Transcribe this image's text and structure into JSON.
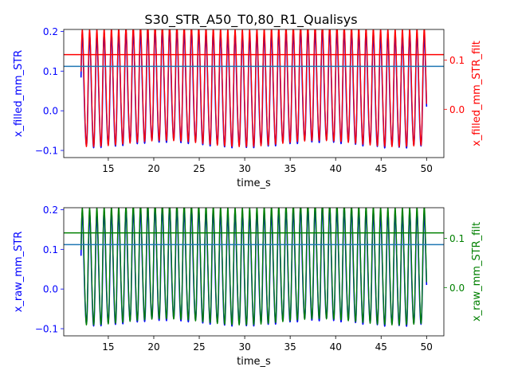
{
  "figure": {
    "title": "S30_STR_A50_T0,80_R1_Qualisys"
  },
  "colors": {
    "blue": "#0000ff",
    "red": "#ff0000",
    "green": "#008000",
    "teal_hline": "#1f77b4"
  },
  "chart_data": [
    {
      "type": "line",
      "title": "S30_STR_A50_T0,80_R1_Qualisys",
      "xlabel": "time_s",
      "ylabel_left": "x_filled_mm_STR",
      "ylabel_right": "x_filled_mm_STR_filt",
      "xlim": [
        10.1,
        51.9
      ],
      "ylim_left": [
        -0.118,
        0.205
      ],
      "ylim_right": [
        -0.098,
        0.162
      ],
      "x_ticks": [
        "15",
        "20",
        "25",
        "30",
        "35",
        "40",
        "45",
        "50"
      ],
      "y_ticks_left": [
        "−0.1",
        "0.0",
        "0.1",
        "0.2"
      ],
      "y_ticks_right": [
        "0.0",
        "0.1"
      ],
      "grid": false,
      "series": [
        {
          "name": "x_filled_mm_STR",
          "axis": "left",
          "color": "#0000ff",
          "signal": {
            "t_start": 12.0,
            "t_end": 50.0,
            "period_s": 0.8,
            "mean": 0.05,
            "amplitude_peak": 0.185,
            "amplitude_trough": -0.09
          }
        },
        {
          "name": "x_filled_mm_STR_filt",
          "axis": "right",
          "color": "#ff0000",
          "signal": {
            "t_start": 12.0,
            "t_end": 50.0,
            "period_s": 0.8,
            "mean": 0.05,
            "amplitude_peak": 0.158,
            "amplitude_trough": -0.075
          }
        }
      ],
      "hlines": [
        {
          "axis": "left",
          "value": 0.112,
          "color": "#1f77b4"
        },
        {
          "axis": "right",
          "value": 0.111,
          "color": "#ff0000"
        }
      ]
    },
    {
      "type": "line",
      "xlabel": "time_s",
      "ylabel_left": "x_raw_mm_STR",
      "ylabel_right": "x_raw_mm_STR_filt",
      "xlim": [
        10.1,
        51.9
      ],
      "ylim_left": [
        -0.118,
        0.205
      ],
      "ylim_right": [
        -0.098,
        0.162
      ],
      "x_ticks": [
        "15",
        "20",
        "25",
        "30",
        "35",
        "40",
        "45",
        "50"
      ],
      "y_ticks_left": [
        "−0.1",
        "0.0",
        "0.1",
        "0.2"
      ],
      "y_ticks_right": [
        "0.0",
        "0.1"
      ],
      "grid": false,
      "series": [
        {
          "name": "x_raw_mm_STR",
          "axis": "left",
          "color": "#0000ff",
          "signal": {
            "t_start": 12.0,
            "t_end": 50.0,
            "period_s": 0.8,
            "mean": 0.05,
            "amplitude_peak": 0.185,
            "amplitude_trough": -0.09
          }
        },
        {
          "name": "x_raw_mm_STR_filt",
          "axis": "right",
          "color": "#008000",
          "signal": {
            "t_start": 12.0,
            "t_end": 50.0,
            "period_s": 0.8,
            "mean": 0.05,
            "amplitude_peak": 0.158,
            "amplitude_trough": -0.075
          }
        }
      ],
      "hlines": [
        {
          "axis": "left",
          "value": 0.112,
          "color": "#1f77b4"
        },
        {
          "axis": "right",
          "value": 0.111,
          "color": "#008000"
        }
      ]
    }
  ]
}
